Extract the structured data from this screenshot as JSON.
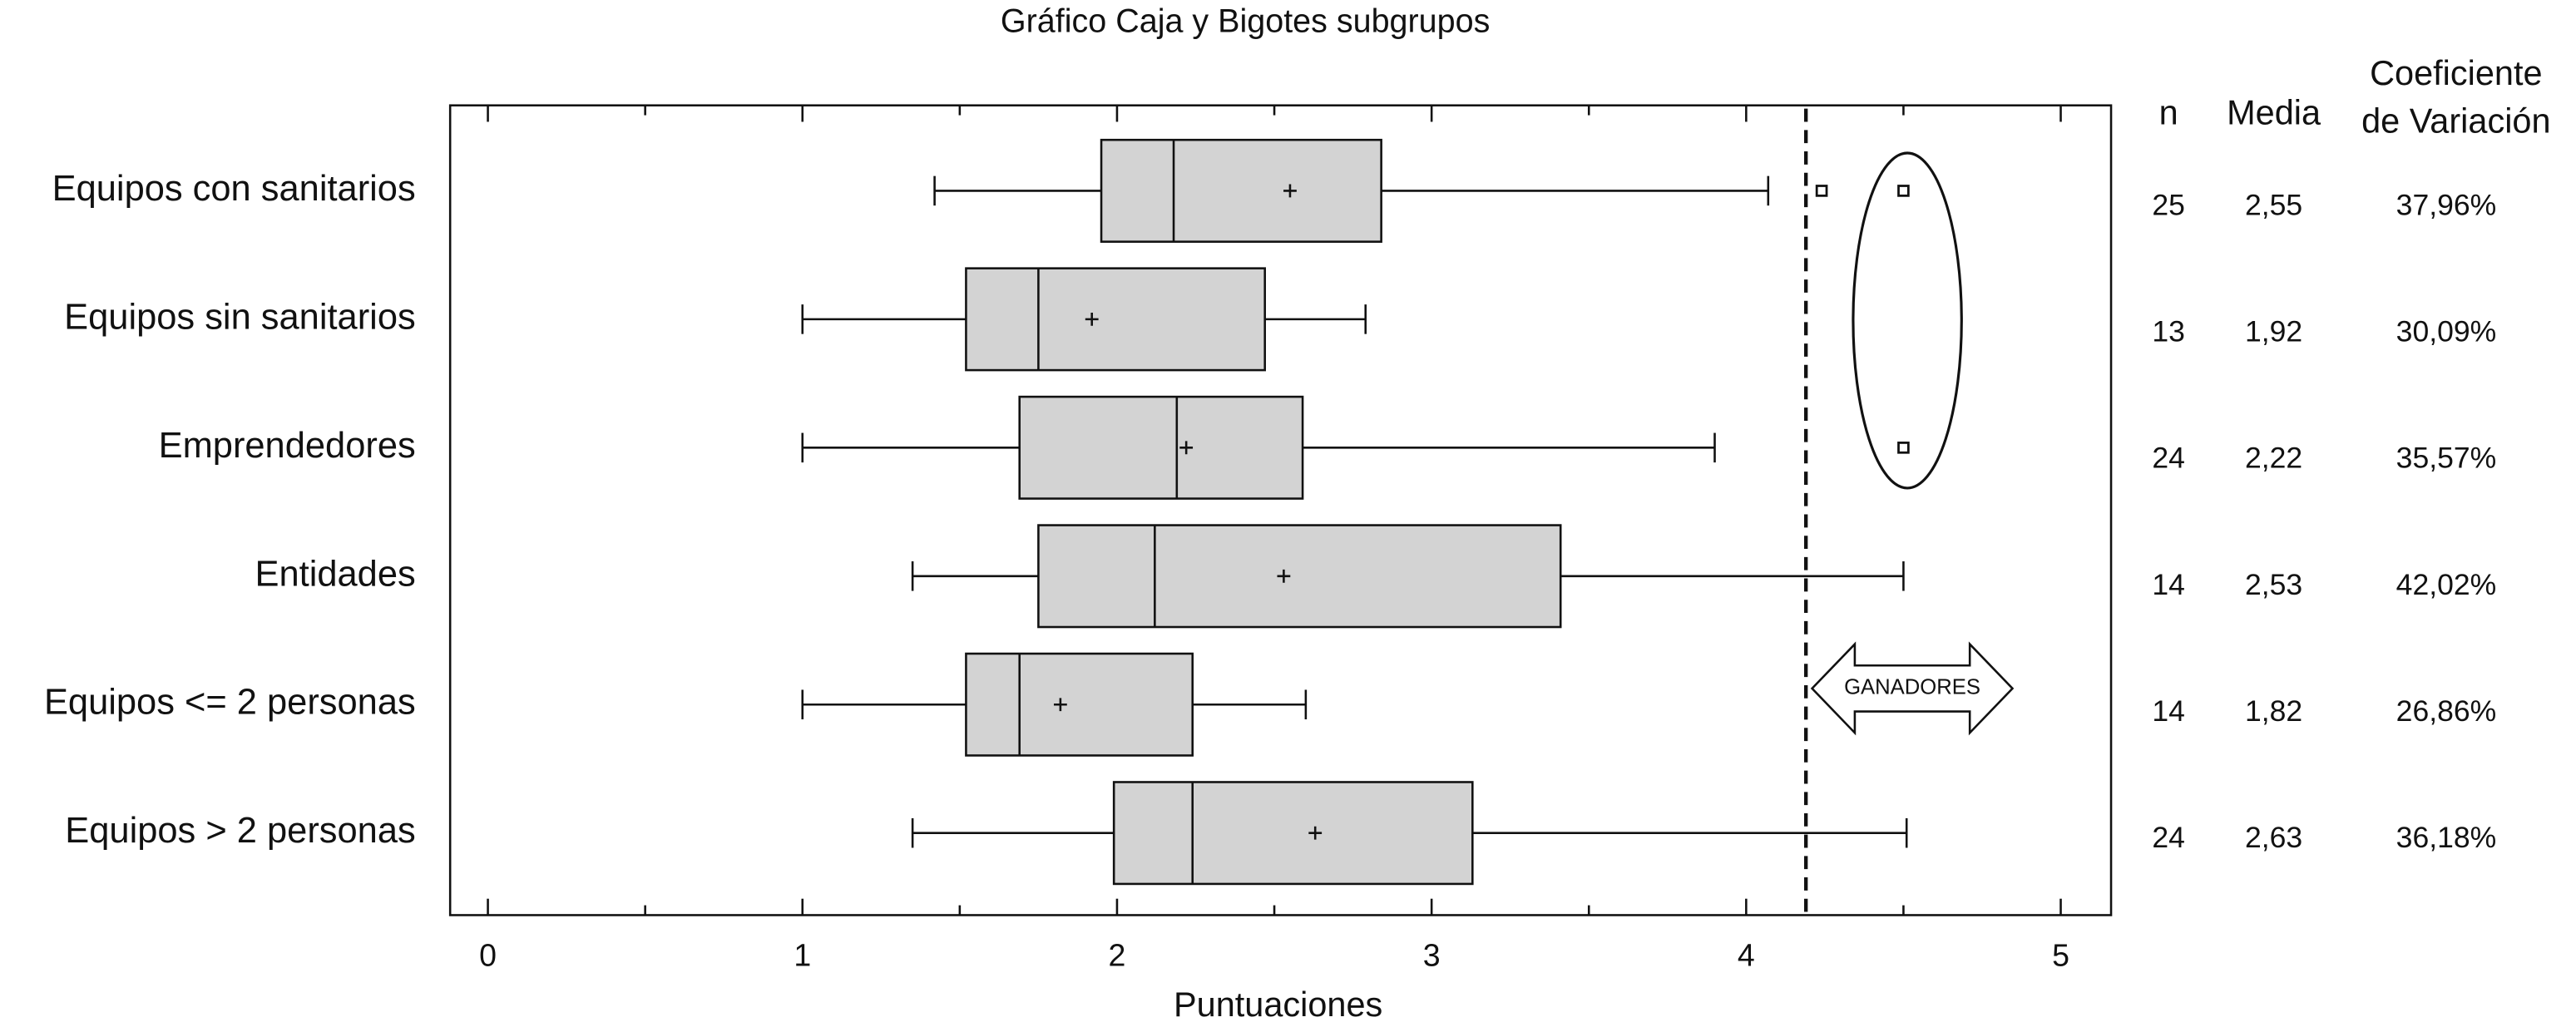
{
  "chart_data": {
    "type": "boxplot",
    "title": "Gráfico Caja y Bigotes subgrupos",
    "xlabel": "Puntuaciones",
    "xlim": [
      -0.12,
      5.16
    ],
    "xticks": [
      0,
      1,
      2,
      3,
      4,
      5
    ],
    "xminor_ticks": [
      0.5,
      1.5,
      2.5,
      3.5,
      4.5
    ],
    "box_color": "#d3d3d3",
    "reference_line": 4.19,
    "annotation": "GANADORES",
    "categories": [
      "Equipos con sanitarios",
      "Equipos sin sanitarios",
      "Emprendedores",
      "Entidades",
      "Equipos <= 2 personas",
      "Equipos > 2 personas"
    ],
    "boxes": [
      {
        "min": 1.42,
        "q1": 1.95,
        "median": 2.18,
        "q3": 2.84,
        "max": 4.07,
        "mean": 2.55,
        "outliers": [
          4.24,
          4.5
        ]
      },
      {
        "min": 1.0,
        "q1": 1.52,
        "median": 1.75,
        "q3": 2.47,
        "max": 2.79,
        "mean": 1.92,
        "outliers": []
      },
      {
        "min": 1.0,
        "q1": 1.69,
        "median": 2.19,
        "q3": 2.59,
        "max": 3.9,
        "mean": 2.22,
        "outliers": [
          4.5
        ]
      },
      {
        "min": 1.35,
        "q1": 1.75,
        "median": 2.12,
        "q3": 3.41,
        "max": 4.5,
        "mean": 2.53,
        "outliers": []
      },
      {
        "min": 1.0,
        "q1": 1.52,
        "median": 1.69,
        "q3": 2.24,
        "max": 2.6,
        "mean": 1.82,
        "outliers": []
      },
      {
        "min": 1.35,
        "q1": 1.99,
        "median": 2.24,
        "q3": 3.13,
        "max": 4.51,
        "mean": 2.63,
        "outliers": []
      }
    ],
    "table": {
      "headers": [
        [
          "n"
        ],
        [
          "Media"
        ],
        [
          "Coeficiente",
          "de Variación"
        ]
      ],
      "rows": [
        [
          "25",
          "2,55",
          "37,96%"
        ],
        [
          "13",
          "1,92",
          "30,09%"
        ],
        [
          "24",
          "2,22",
          "35,57%"
        ],
        [
          "14",
          "2,53",
          "42,02%"
        ],
        [
          "14",
          "1,82",
          "26,86%"
        ],
        [
          "24",
          "2,63",
          "36,18%"
        ]
      ]
    }
  }
}
